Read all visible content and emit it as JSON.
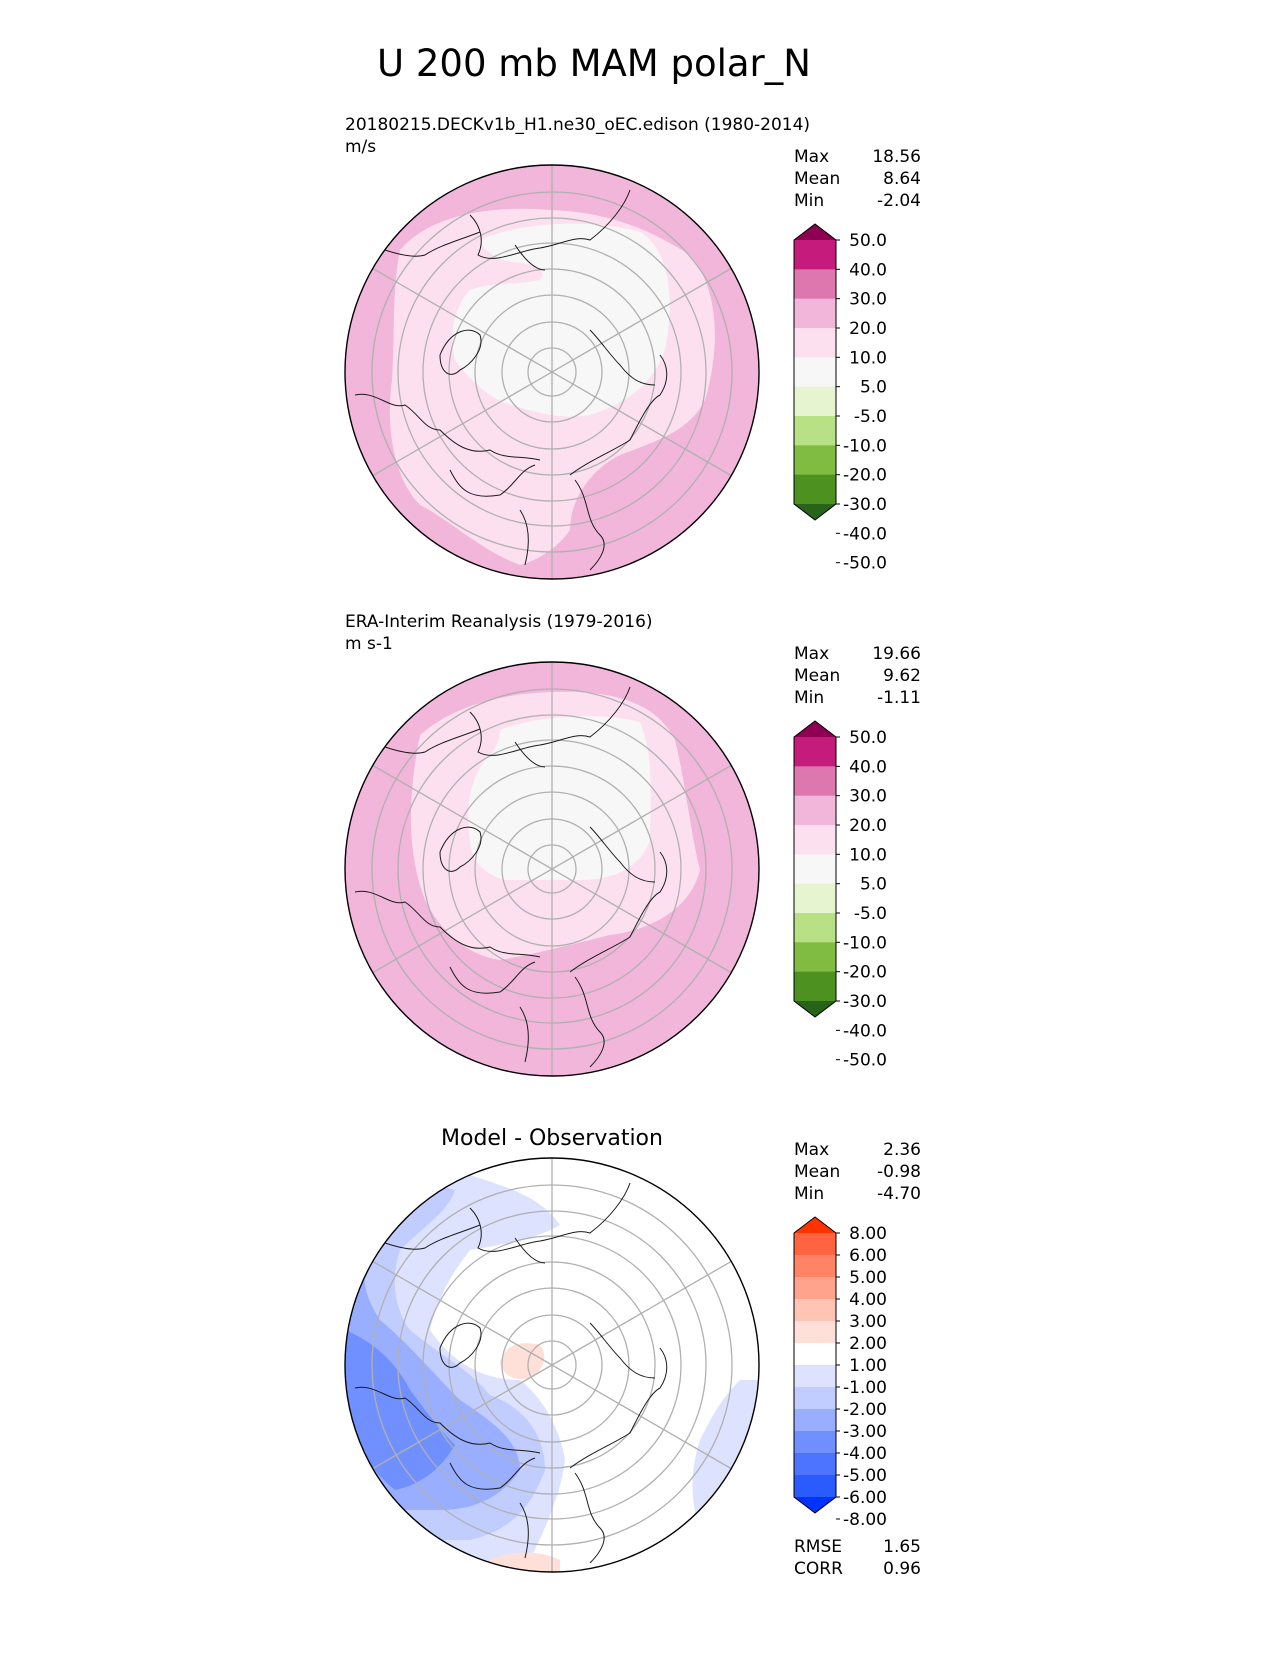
{
  "title": "U 200 mb MAM polar_N",
  "colors": {
    "field": [
      "#276419",
      "#4d9221",
      "#7fbc41",
      "#b8e186",
      "#e6f5d0",
      "#f7f7f7",
      "#fde0ef",
      "#f1b6da",
      "#de77ae",
      "#c51b7d",
      "#8e0152"
    ],
    "field_used": [
      "#f7f7f7",
      "#fde0ef",
      "#f1b6da"
    ],
    "diff": [
      "#0033ff",
      "#2a5bff",
      "#4d74ff",
      "#7090ff",
      "#99aeff",
      "#c1ccff",
      "#dde3ff",
      "#ffffff",
      "#ffe0d9",
      "#ffc4b4",
      "#ffa38c",
      "#ff8466",
      "#ff6340",
      "#ff3300"
    ],
    "grid": "#b0b0b0"
  },
  "stats_labels": {
    "max": "Max",
    "mean": "Mean",
    "min": "Min",
    "rmse": "RMSE",
    "corr": "CORR"
  },
  "chart_data": [
    {
      "type": "heatmap",
      "projection": "north polar stereographic",
      "title": "20180215.DECKv1b_H1.ne30_oEC.edison (1980-2014)",
      "units": "m/s",
      "stats": {
        "max": "18.56",
        "mean": "8.64",
        "min": "-2.04"
      },
      "colorbar": {
        "levels": [
          -50,
          -40,
          -30,
          -20,
          -10,
          -5,
          5,
          10,
          20,
          30,
          40,
          50
        ],
        "tick_labels": [
          "50.0",
          "40.0",
          "30.0",
          "20.0",
          "10.0",
          "5.0",
          "-5.0",
          "-10.0",
          "-20.0",
          "-30.0",
          "-40.0",
          "-50.0"
        ],
        "extend": "both"
      }
    },
    {
      "type": "heatmap",
      "projection": "north polar stereographic",
      "title": "ERA-Interim Reanalysis (1979-2016)",
      "units": "m s-1",
      "stats": {
        "max": "19.66",
        "mean": "9.62",
        "min": "-1.11"
      },
      "colorbar": {
        "levels": [
          -50,
          -40,
          -30,
          -20,
          -10,
          -5,
          5,
          10,
          20,
          30,
          40,
          50
        ],
        "tick_labels": [
          "50.0",
          "40.0",
          "30.0",
          "20.0",
          "10.0",
          "5.0",
          "-5.0",
          "-10.0",
          "-20.0",
          "-30.0",
          "-40.0",
          "-50.0"
        ],
        "extend": "both"
      }
    },
    {
      "type": "heatmap",
      "projection": "north polar stereographic",
      "title": "Model - Observation",
      "stats": {
        "max": "2.36",
        "mean": "-0.98",
        "min": "-4.70",
        "rmse": "1.65",
        "corr": "0.96"
      },
      "colorbar": {
        "levels": [
          -8,
          -6,
          -5,
          -4,
          -3,
          -2,
          -1,
          1,
          2,
          3,
          4,
          5,
          6,
          8
        ],
        "tick_labels": [
          "8.00",
          "6.00",
          "5.00",
          "4.00",
          "3.00",
          "2.00",
          "1.00",
          "-1.00",
          "-2.00",
          "-3.00",
          "-4.00",
          "-5.00",
          "-6.00",
          "-8.00"
        ],
        "extend": "both"
      }
    }
  ]
}
